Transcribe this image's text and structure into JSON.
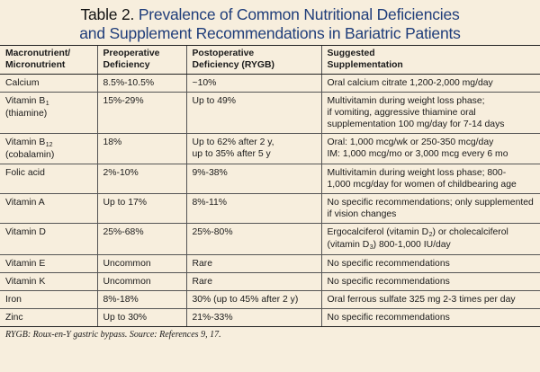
{
  "title": {
    "lead": "Table 2.",
    "line1_rest": "Prevalence of Common Nutritional Deficiencies",
    "line2": "and Supplement Recommendations in Bariatric Patients"
  },
  "headers": [
    [
      "Macronutrient/",
      "Micronutrient"
    ],
    [
      "Preoperative",
      "Deficiency"
    ],
    [
      "Postoperative",
      "Deficiency (RYGB)"
    ],
    [
      "Suggested",
      "Supplementation"
    ]
  ],
  "rows": [
    {
      "name": "Calcium",
      "cells": [
        [
          "Calcium"
        ],
        [
          "8.5%-10.5%"
        ],
        [
          "~10%"
        ],
        [
          "Oral calcium citrate 1,200-2,000 mg/day"
        ]
      ]
    },
    {
      "name": "Vitamin B1",
      "nut": {
        "base": "Vitamin B",
        "sub": "1",
        "line2": "(thiamine)"
      },
      "cells": [
        null,
        [
          "15%-29%"
        ],
        [
          "Up to 49%"
        ],
        [
          "Multivitamin during weight loss phase;",
          "if vomiting, aggressive thiamine oral",
          "supplementation 100 mg/day for 7-14 days"
        ]
      ]
    },
    {
      "name": "Vitamin B12",
      "nut": {
        "base": "Vitamin B",
        "sub": "12",
        "line2": "(cobalamin)"
      },
      "cells": [
        null,
        [
          "18%"
        ],
        [
          "Up to 62% after 2 y,",
          "up to 35% after 5 y"
        ],
        [
          "Oral: 1,000 mcg/wk or 250-350 mcg/day",
          "IM: 1,000 mcg/mo or 3,000 mcg every 6 mo"
        ]
      ]
    },
    {
      "name": "Folic acid",
      "cells": [
        [
          "Folic acid"
        ],
        [
          "2%-10%"
        ],
        [
          "9%-38%"
        ],
        [
          "Multivitamin during weight loss phase; 800-",
          "1,000 mcg/day for women of childbearing age"
        ]
      ]
    },
    {
      "name": "Vitamin A",
      "cells": [
        [
          "Vitamin A"
        ],
        [
          "Up to 17%"
        ],
        [
          "8%-11%"
        ],
        [
          "No specific recommendations; only supplemented",
          "if vision changes"
        ]
      ]
    },
    {
      "name": "Vitamin D",
      "cells": [
        [
          "Vitamin D"
        ],
        [
          "25%-68%"
        ],
        [
          "25%-80%"
        ],
        null
      ],
      "vitd": {
        "a": "Ergocalciferol (vitamin D",
        "sub_a": "2",
        "b": ") or cholecalciferol",
        "c": "(vitamin D",
        "sub_c": "3",
        "d": ") 800-1,000 IU/day"
      }
    },
    {
      "name": "Vitamin E",
      "cells": [
        [
          "Vitamin E"
        ],
        [
          "Uncommon"
        ],
        [
          "Rare"
        ],
        [
          "No specific recommendations"
        ]
      ]
    },
    {
      "name": "Vitamin K",
      "cells": [
        [
          "Vitamin K"
        ],
        [
          "Uncommon"
        ],
        [
          "Rare"
        ],
        [
          "No specific recommendations"
        ]
      ]
    },
    {
      "name": "Iron",
      "cells": [
        [
          "Iron"
        ],
        [
          "8%-18%"
        ],
        [
          "30% (up to 45% after 2 y)"
        ],
        [
          "Oral ferrous sulfate 325 mg 2-3 times per day"
        ]
      ]
    },
    {
      "name": "Zinc",
      "cells": [
        [
          "Zinc"
        ],
        [
          "Up to 30%"
        ],
        [
          "21%-33%"
        ],
        [
          "No specific recommendations"
        ]
      ]
    }
  ],
  "footnote": "RYGB: Roux-en-Y gastric bypass. Source: References 9, 17.",
  "colors": {
    "background": "#f7eedd",
    "title_accent": "#1f3d7a"
  }
}
